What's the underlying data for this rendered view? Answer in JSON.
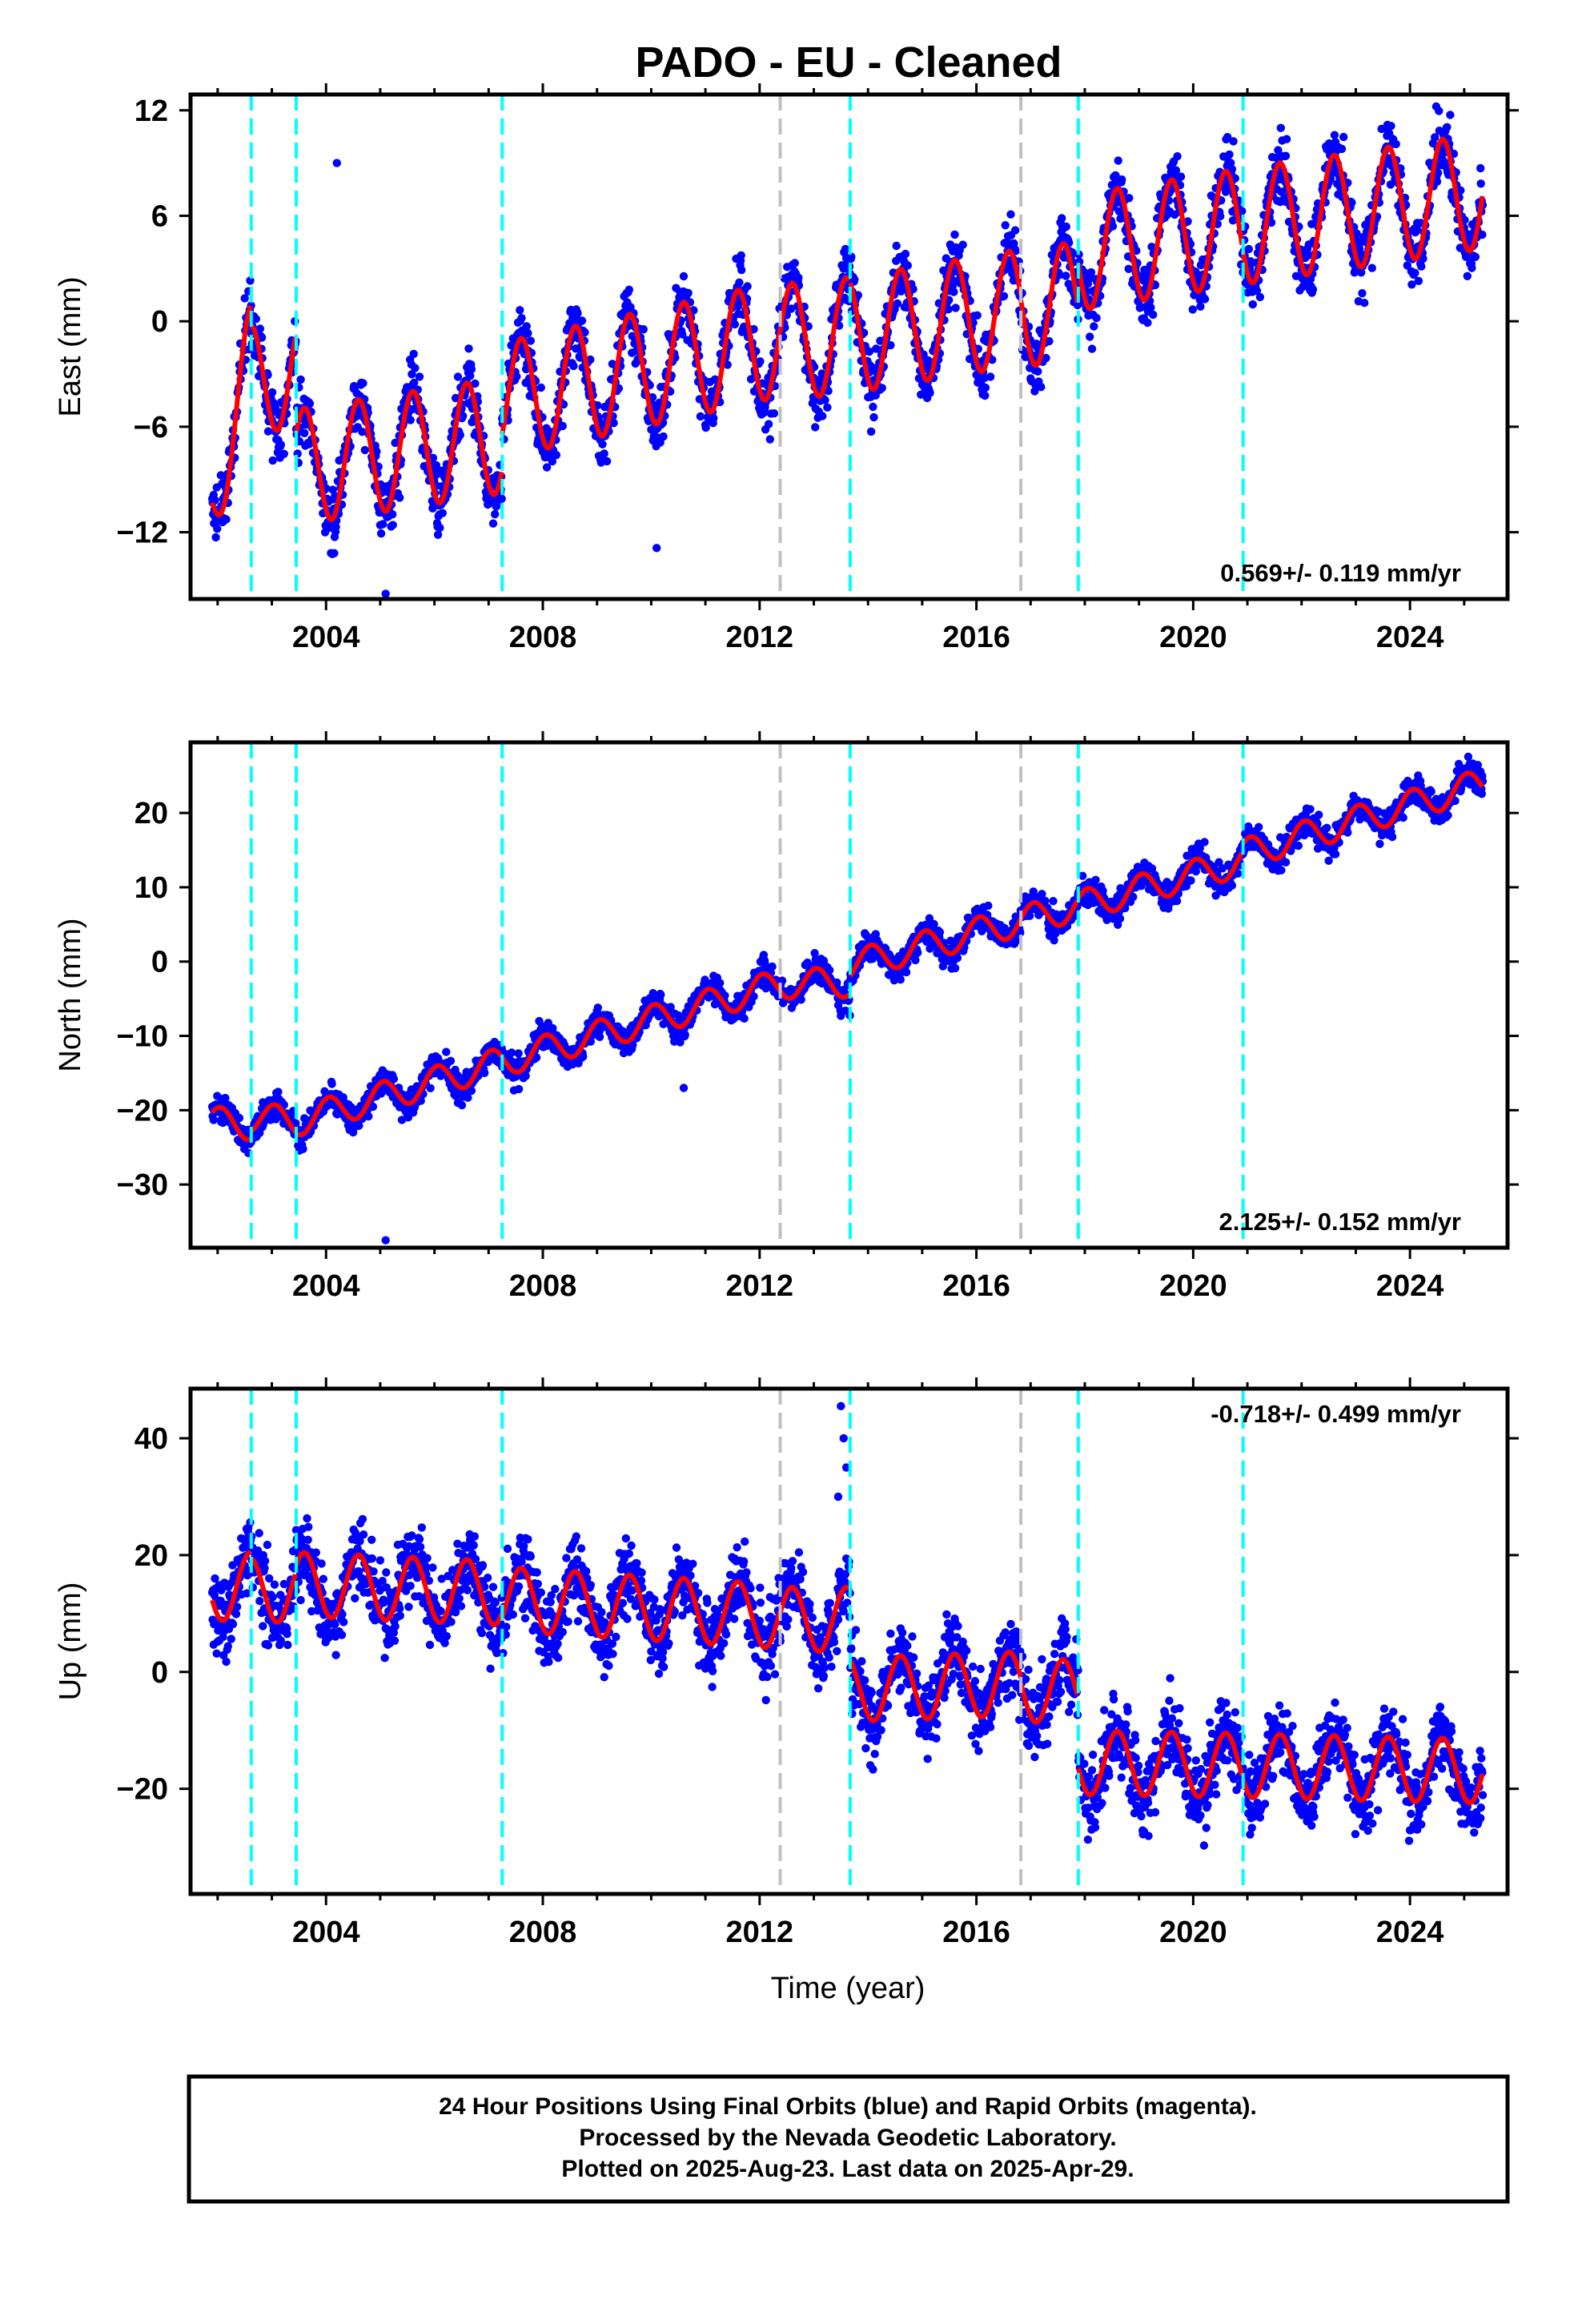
{
  "title": "PADO  - EU - Cleaned",
  "colors": {
    "final_orbits": "#0000ff",
    "model_fit": "#ff0000",
    "event_cyan": "#00ffff",
    "event_gray": "#c0c0c0"
  },
  "x_axis": {
    "label": "Time (year)",
    "range": [
      2001.5,
      2025.8
    ],
    "ticks": [
      2004,
      2008,
      2012,
      2016,
      2020,
      2024
    ],
    "minor_tick_step": 1
  },
  "events": [
    {
      "x": 2002.62,
      "color": "cyan"
    },
    {
      "x": 2003.45,
      "color": "cyan"
    },
    {
      "x": 2007.25,
      "color": "cyan"
    },
    {
      "x": 2012.38,
      "color": "gray"
    },
    {
      "x": 2013.67,
      "color": "cyan"
    },
    {
      "x": 2016.82,
      "color": "gray"
    },
    {
      "x": 2017.88,
      "color": "cyan"
    },
    {
      "x": 2020.92,
      "color": "cyan"
    }
  ],
  "footer": {
    "line1": "24 Hour Positions Using Final Orbits (blue) and Rapid Orbits (magenta).",
    "line2": "Processed by the Nevada Geodetic Laboratory.",
    "line3": "Plotted on 2025-Aug-23. Last data on 2025-Apr-29."
  },
  "chart_data": [
    {
      "type": "scatter",
      "name": "east",
      "ylabel": "East (mm)",
      "ylim": [
        -15.8,
        12.9
      ],
      "yticks": [
        -12,
        -6,
        0,
        6,
        12
      ],
      "yticklabels": [
        "−12",
        "−6",
        "0",
        "6",
        "12"
      ],
      "rate_label": "0.569+/- 0.119 mm/yr",
      "rate_corner": "bottom-right",
      "series_fit": {
        "segments": [
          {
            "x": [
              2001.9,
              2002.62
            ],
            "y": [
              -9.3,
              -2.3
            ]
          },
          {
            "x": [
              2002.62,
              2003.45
            ],
            "y": [
              -3.5,
              -2.5
            ]
          },
          {
            "x": [
              2003.45,
              2007.25
            ],
            "y": [
              -8.3,
              -6.5
            ]
          },
          {
            "x": [
              2007.25,
              2012.38
            ],
            "y": [
              -4.5,
              -1.0
            ]
          },
          {
            "x": [
              2012.38,
              2013.67
            ],
            "y": [
              -1.2,
              -0.8
            ]
          },
          {
            "x": [
              2013.67,
              2016.82
            ],
            "y": [
              -0.8,
              0.8
            ]
          },
          {
            "x": [
              2016.82,
              2017.88
            ],
            "y": [
              0.6,
              1.3
            ]
          },
          {
            "x": [
              2017.88,
              2020.92
            ],
            "y": [
              3.9,
              5.4
            ]
          },
          {
            "x": [
              2020.92,
              2025.35
            ],
            "y": [
              5.4,
              7.4
            ]
          }
        ],
        "seasonal_amplitude": 3.3,
        "seasonal_peak_phase": 0.6
      },
      "scatter_spread": 1.3,
      "outliers": [
        {
          "x": 2004.2,
          "y": 9.0
        },
        {
          "x": 2010.1,
          "y": -12.9
        },
        {
          "x": 2005.1,
          "y": -15.5
        }
      ]
    },
    {
      "type": "scatter",
      "name": "north",
      "ylabel": "North (mm)",
      "ylim": [
        -38.5,
        29.5
      ],
      "yticks": [
        -30,
        -20,
        -10,
        0,
        10,
        20
      ],
      "yticklabels": [
        "−30",
        "−20",
        "−10",
        "0",
        "10",
        "20"
      ],
      "rate_label": "2.125+/- 0.152 mm/yr",
      "rate_corner": "bottom-right",
      "series_fit": {
        "segments": [
          {
            "x": [
              2001.9,
              2002.62
            ],
            "y": [
              -21.5,
              -22.0
            ]
          },
          {
            "x": [
              2002.62,
              2003.45
            ],
            "y": [
              -21.0,
              -21.5
            ]
          },
          {
            "x": [
              2003.45,
              2007.25
            ],
            "y": [
              -21.5,
              -13.5
            ]
          },
          {
            "x": [
              2007.25,
              2012.38
            ],
            "y": [
              -13.5,
              -3.0
            ]
          },
          {
            "x": [
              2012.38,
              2013.67
            ],
            "y": [
              -3.0,
              -2.8
            ]
          },
          {
            "x": [
              2013.67,
              2016.82
            ],
            "y": [
              -0.5,
              5.5
            ]
          },
          {
            "x": [
              2016.82,
              2017.88
            ],
            "y": [
              5.5,
              7.5
            ]
          },
          {
            "x": [
              2017.88,
              2020.92
            ],
            "y": [
              7.5,
              13.5
            ]
          },
          {
            "x": [
              2020.92,
              2025.35
            ],
            "y": [
              14.5,
              24.0
            ]
          }
        ],
        "seasonal_amplitude": 2.0,
        "seasonal_peak_phase": 0.05
      },
      "scatter_spread": 1.3,
      "outliers": [
        {
          "x": 2005.1,
          "y": -37.5
        },
        {
          "x": 2010.6,
          "y": -17.0
        }
      ]
    },
    {
      "type": "scatter",
      "name": "up",
      "ylabel": "Up (mm)",
      "ylim": [
        -38,
        48.5
      ],
      "yticks": [
        -20,
        0,
        20,
        40
      ],
      "yticklabels": [
        "−20",
        "0",
        "20",
        "40"
      ],
      "rate_label": "-0.718+/- 0.499 mm/yr",
      "rate_corner": "top-right",
      "series_fit": {
        "segments": [
          {
            "x": [
              2001.9,
              2002.62
            ],
            "y": [
              14.0,
              15.0
            ]
          },
          {
            "x": [
              2002.62,
              2003.45
            ],
            "y": [
              14.0,
              14.0
            ]
          },
          {
            "x": [
              2003.45,
              2007.25
            ],
            "y": [
              15.0,
              13.5
            ]
          },
          {
            "x": [
              2007.25,
              2012.38
            ],
            "y": [
              12.5,
              9.5
            ]
          },
          {
            "x": [
              2012.38,
              2013.67
            ],
            "y": [
              9.0,
              9.0
            ]
          },
          {
            "x": [
              2013.67,
              2016.82
            ],
            "y": [
              -3.0,
              -2.0
            ]
          },
          {
            "x": [
              2016.82,
              2017.88
            ],
            "y": [
              -3.0,
              -3.5
            ]
          },
          {
            "x": [
              2017.88,
              2020.92
            ],
            "y": [
              -15.5,
              -16.0
            ]
          },
          {
            "x": [
              2020.92,
              2025.35
            ],
            "y": [
              -16.0,
              -17.0
            ]
          }
        ],
        "seasonal_amplitude": 5.5,
        "seasonal_peak_phase": 0.6
      },
      "scatter_spread": 4.5,
      "outliers": [
        {
          "x": 2013.5,
          "y": 45.5
        },
        {
          "x": 2013.55,
          "y": 40.0
        },
        {
          "x": 2013.6,
          "y": 35.0
        },
        {
          "x": 2013.45,
          "y": 30.0
        }
      ]
    }
  ]
}
